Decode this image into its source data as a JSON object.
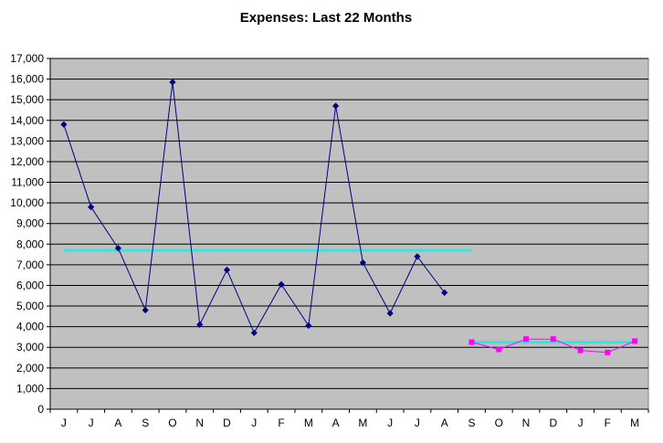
{
  "chart_data": {
    "type": "line",
    "title": "Expenses: Last 22 Months",
    "xlabel": "",
    "ylabel": "",
    "categories": [
      "J",
      "J",
      "A",
      "S",
      "O",
      "N",
      "D",
      "J",
      "F",
      "M",
      "A",
      "M",
      "J",
      "J",
      "A",
      "S",
      "O",
      "N",
      "D",
      "J",
      "F",
      "M"
    ],
    "yticks": [
      "0",
      "1,000",
      "2,000",
      "3,000",
      "4,000",
      "5,000",
      "6,000",
      "7,000",
      "8,000",
      "9,000",
      "10,000",
      "11,000",
      "12,000",
      "13,000",
      "14,000",
      "15,000",
      "16,000",
      "17,000"
    ],
    "ylim": [
      0,
      17000
    ],
    "grid": true,
    "legend": "none",
    "series": [
      {
        "color": "#000080",
        "marker": "diamond",
        "values": [
          13800,
          9800,
          7800,
          4800,
          15850,
          4100,
          6750,
          3700,
          6050,
          4050,
          14700,
          7100,
          4650,
          7400,
          5650,
          null,
          null,
          null,
          null,
          null,
          null,
          null
        ]
      },
      {
        "color": "#FF00FF",
        "marker": "square",
        "values": [
          null,
          null,
          null,
          null,
          null,
          null,
          null,
          null,
          null,
          null,
          null,
          null,
          null,
          null,
          null,
          3250,
          2900,
          3400,
          3400,
          2850,
          2750,
          3300
        ]
      }
    ],
    "reference_lines": [
      {
        "color": "#33E6E6",
        "y": 7700,
        "from_index": 0,
        "to_index": 15
      },
      {
        "color": "#33E6E6",
        "y": 3250,
        "from_index": 15,
        "to_index": 21
      }
    ],
    "colors": {
      "plot_background": "#C0C0C0",
      "gridline": "#000000"
    }
  }
}
